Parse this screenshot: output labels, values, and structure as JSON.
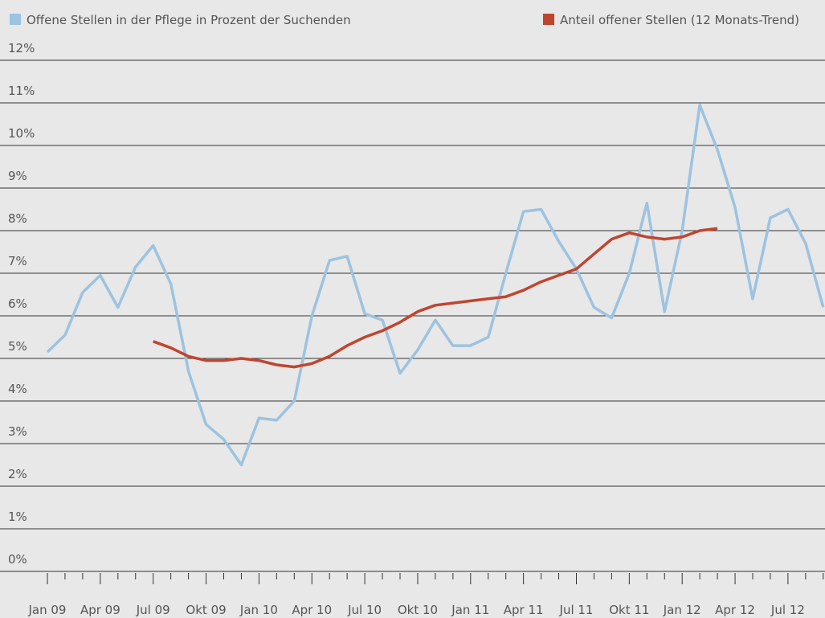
{
  "chart_data": {
    "type": "line",
    "categories": [
      "Jan 09",
      null,
      null,
      "Apr 09",
      null,
      null,
      "Jul 09",
      null,
      null,
      "Okt 09",
      null,
      null,
      "Jan 10",
      null,
      null,
      "Apr 10",
      null,
      null,
      "Jul 10",
      null,
      null,
      "Okt 10",
      null,
      null,
      "Jan 11",
      null,
      null,
      "Apr 11",
      null,
      null,
      "Jul 11",
      null,
      null,
      "Okt 11",
      null,
      null,
      "Jan 12",
      null,
      null,
      "Apr 12",
      null,
      null,
      "Jul 12",
      null,
      null
    ],
    "series": [
      {
        "name": "Offene Stellen in der Pflege in Prozent der Suchenden",
        "color": "#9cc3e0",
        "values": [
          5.15,
          5.55,
          6.55,
          6.95,
          6.2,
          7.15,
          7.65,
          6.75,
          4.7,
          3.45,
          3.1,
          2.5,
          3.6,
          3.55,
          4.0,
          6.0,
          7.3,
          7.4,
          6.05,
          5.9,
          4.65,
          5.2,
          5.9,
          5.3,
          5.3,
          5.5,
          7.0,
          8.45,
          8.5,
          7.75,
          7.1,
          6.2,
          5.95,
          7.0,
          8.65,
          6.1,
          8.0,
          10.95,
          9.9,
          8.55,
          6.4,
          8.3,
          8.5,
          7.7,
          6.2
        ]
      },
      {
        "name": "Anteil offener Stellen (12 Monats-Trend)",
        "color": "#c0452e",
        "values": [
          null,
          null,
          null,
          null,
          null,
          null,
          5.4,
          5.25,
          5.05,
          4.95,
          4.95,
          5.0,
          4.95,
          4.85,
          4.8,
          4.88,
          5.05,
          5.3,
          5.5,
          5.65,
          5.85,
          6.1,
          6.25,
          6.3,
          6.35,
          6.4,
          6.45,
          6.6,
          6.8,
          6.95,
          7.1,
          7.45,
          7.8,
          7.95,
          7.85,
          7.8,
          7.85,
          8.0,
          8.05,
          null,
          null,
          null,
          null,
          null,
          null
        ]
      }
    ],
    "ylim": [
      0,
      12
    ],
    "yticks": [
      {
        "value": 0,
        "label": "0%"
      },
      {
        "value": 1,
        "label": "1%"
      },
      {
        "value": 2,
        "label": "2%"
      },
      {
        "value": 3,
        "label": "3%"
      },
      {
        "value": 4,
        "label": "4%"
      },
      {
        "value": 5,
        "label": "5%"
      },
      {
        "value": 6,
        "label": "6%"
      },
      {
        "value": 7,
        "label": "7%"
      },
      {
        "value": 8,
        "label": "8%"
      },
      {
        "value": 9,
        "label": "9%"
      },
      {
        "value": 10,
        "label": "10%"
      },
      {
        "value": 11,
        "label": "11%"
      },
      {
        "value": 12,
        "label": "12%"
      }
    ],
    "grid": true,
    "legend": "top"
  }
}
